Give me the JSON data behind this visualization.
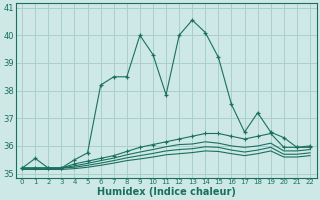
{
  "xlabel": "Humidex (Indice chaleur)",
  "background_color": "#cde8e5",
  "grid_color": "#aacfcc",
  "line_color": "#1a7060",
  "x_values": [
    0,
    1,
    2,
    3,
    4,
    5,
    6,
    7,
    8,
    9,
    10,
    11,
    12,
    13,
    14,
    15,
    16,
    17,
    18,
    19,
    20,
    21,
    22
  ],
  "series": [
    [
      35.2,
      35.55,
      35.2,
      35.2,
      35.5,
      35.75,
      38.2,
      38.5,
      38.5,
      40.0,
      39.3,
      37.85,
      40.0,
      40.55,
      40.1,
      39.2,
      37.5,
      36.5,
      37.2,
      36.5,
      36.3,
      35.95,
      35.95
    ],
    [
      35.2,
      35.2,
      35.2,
      35.2,
      35.35,
      35.45,
      35.55,
      35.65,
      35.8,
      35.95,
      36.05,
      36.15,
      36.25,
      36.35,
      36.45,
      36.45,
      36.35,
      36.25,
      36.35,
      36.45,
      35.95,
      35.95,
      36.0
    ],
    [
      35.2,
      35.2,
      35.2,
      35.2,
      35.28,
      35.37,
      35.47,
      35.56,
      35.68,
      35.78,
      35.87,
      35.97,
      36.05,
      36.07,
      36.15,
      36.1,
      36.0,
      35.95,
      36.0,
      36.1,
      35.82,
      35.82,
      35.87
    ],
    [
      35.2,
      35.2,
      35.2,
      35.2,
      35.23,
      35.3,
      35.38,
      35.47,
      35.57,
      35.65,
      35.73,
      35.82,
      35.87,
      35.9,
      35.97,
      35.95,
      35.85,
      35.78,
      35.85,
      35.95,
      35.7,
      35.7,
      35.75
    ],
    [
      35.15,
      35.15,
      35.15,
      35.15,
      35.18,
      35.23,
      35.3,
      35.38,
      35.47,
      35.53,
      35.6,
      35.68,
      35.72,
      35.76,
      35.82,
      35.8,
      35.72,
      35.65,
      35.72,
      35.82,
      35.6,
      35.6,
      35.65
    ]
  ],
  "ylim": [
    34.85,
    41.15
  ],
  "yticks": [
    35,
    36,
    37,
    38,
    39,
    40,
    41
  ],
  "xticks": [
    0,
    1,
    2,
    3,
    4,
    5,
    6,
    7,
    8,
    9,
    10,
    11,
    12,
    13,
    14,
    15,
    16,
    17,
    18,
    19,
    20,
    21,
    22
  ]
}
